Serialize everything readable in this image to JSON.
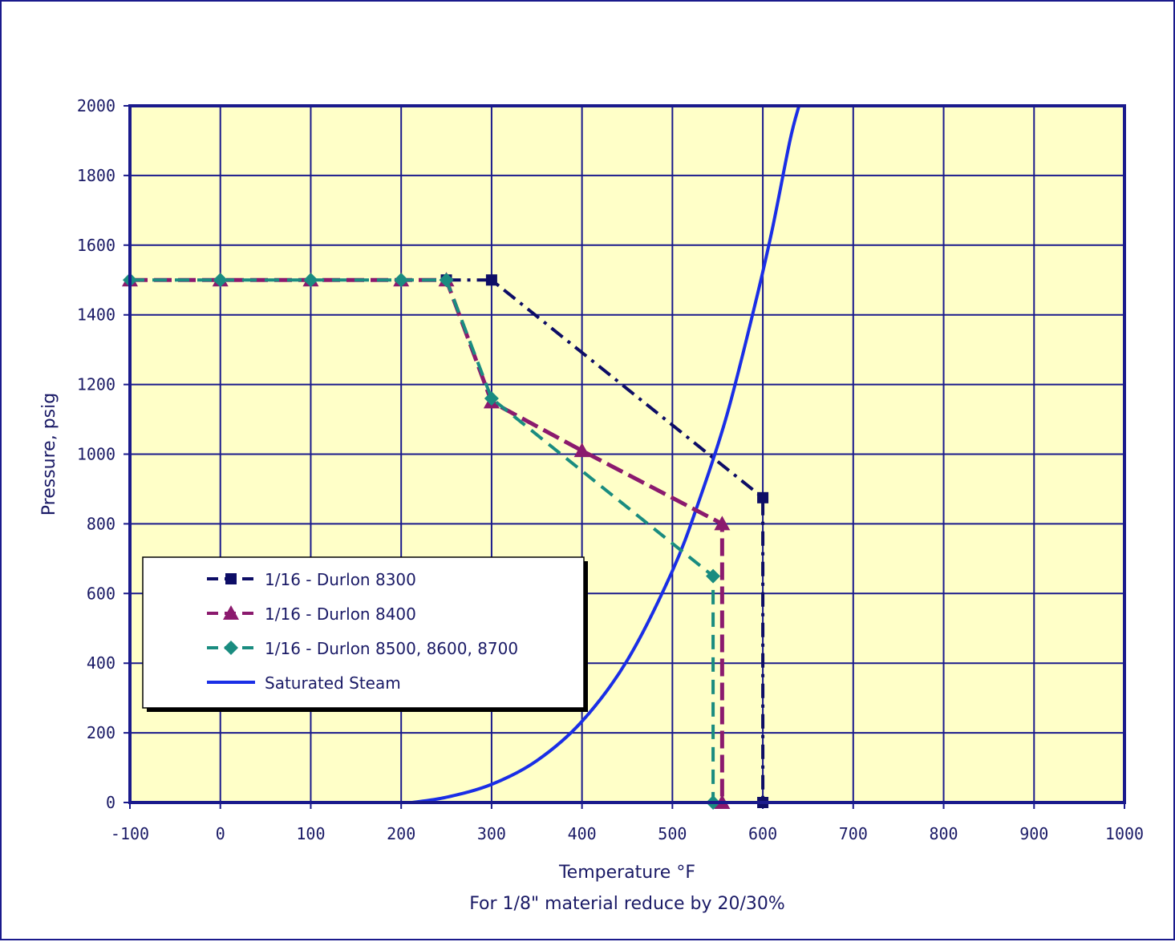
{
  "chart_data": {
    "type": "line",
    "xlabel": "Temperature °F",
    "note": "For 1/8\" material reduce by 20/30%",
    "ylabel": "Pressure, psig",
    "xlim": [
      -100,
      1000
    ],
    "ylim": [
      0,
      2000
    ],
    "x_ticks": [
      "-100",
      "0",
      "100",
      "200",
      "300",
      "400",
      "500",
      "600",
      "700",
      "800",
      "900",
      "1000"
    ],
    "y_ticks": [
      "0",
      "200",
      "400",
      "600",
      "800",
      "1000",
      "1200",
      "1400",
      "1600",
      "1800",
      "2000"
    ],
    "grid": true,
    "legend_position": "lower-left",
    "plot_background": "#ffffc8",
    "grid_color": "#1a1a8c",
    "series": [
      {
        "name": "1/16 - Durlon 8300",
        "color": "#0d0d66",
        "dash": "dashdot",
        "marker": "square",
        "x": [
          250,
          300,
          600,
          600
        ],
        "y": [
          1500,
          1500,
          875,
          0
        ]
      },
      {
        "name": "1/16 - Durlon 8400",
        "color": "#8b1a6e",
        "dash": "solid-dashed-start",
        "marker": "triangle",
        "x": [
          -100,
          0,
          100,
          200,
          250,
          300,
          400,
          555,
          555
        ],
        "y": [
          1500,
          1500,
          1500,
          1500,
          1500,
          1150,
          1010,
          800,
          0
        ]
      },
      {
        "name": "1/16 - Durlon 8500, 8600, 8700",
        "color": "#1a8c80",
        "dash": "dashed",
        "marker": "diamond",
        "x": [
          -100,
          0,
          100,
          200,
          250,
          300,
          545,
          545
        ],
        "y": [
          1500,
          1500,
          1500,
          1500,
          1500,
          1160,
          650,
          0
        ]
      },
      {
        "name": "Saturated Steam",
        "color": "#1a2ee6",
        "dash": "solid",
        "marker": "none",
        "x": [
          212,
          250,
          300,
          350,
          400,
          450,
          500,
          530,
          560,
          590,
          610,
          630,
          640
        ],
        "y": [
          0,
          15,
          52,
          120,
          233,
          408,
          665,
          870,
          1110,
          1415,
          1640,
          1900,
          2000
        ]
      }
    ]
  }
}
